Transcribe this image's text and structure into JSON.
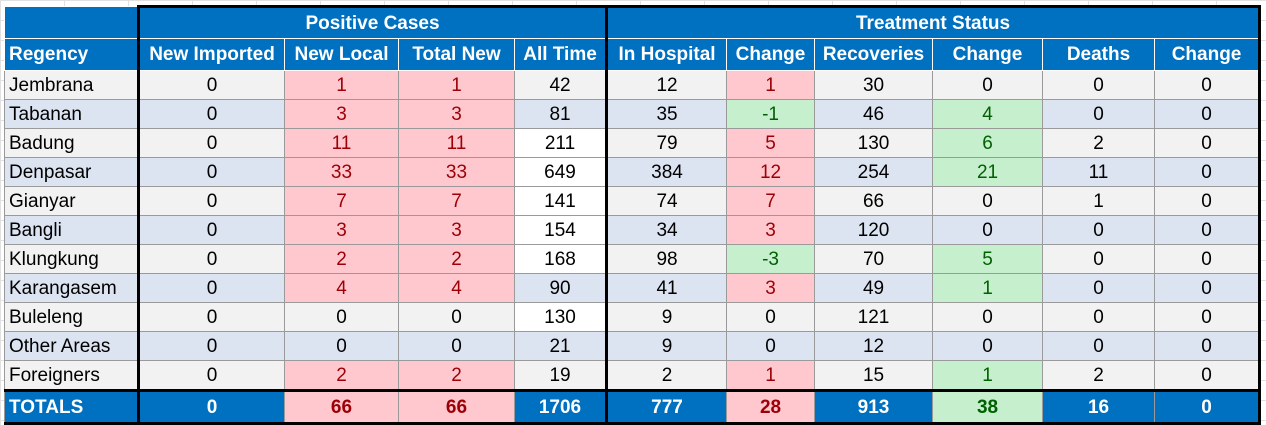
{
  "groups": {
    "positive": "Positive Cases",
    "treatment": "Treatment Status"
  },
  "columns": [
    "Regency",
    "New Imported",
    "New Local",
    "Total New",
    "All Time",
    "In Hospital",
    "Change",
    "Recoveries",
    "Change",
    "Deaths",
    "Change"
  ],
  "rows": [
    [
      "Jembrana",
      "0",
      "1",
      "1",
      "42",
      "12",
      "1",
      "30",
      "0",
      "0",
      "0"
    ],
    [
      "Tabanan",
      "0",
      "3",
      "3",
      "81",
      "35",
      "-1",
      "46",
      "4",
      "0",
      "0"
    ],
    [
      "Badung",
      "0",
      "11",
      "11",
      "211",
      "79",
      "5",
      "130",
      "6",
      "2",
      "0"
    ],
    [
      "Denpasar",
      "0",
      "33",
      "33",
      "649",
      "384",
      "12",
      "254",
      "21",
      "11",
      "0"
    ],
    [
      "Gianyar",
      "0",
      "7",
      "7",
      "141",
      "74",
      "7",
      "66",
      "0",
      "1",
      "0"
    ],
    [
      "Bangli",
      "0",
      "3",
      "3",
      "154",
      "34",
      "3",
      "120",
      "0",
      "0",
      "0"
    ],
    [
      "Klungkung",
      "0",
      "2",
      "2",
      "168",
      "98",
      "-3",
      "70",
      "5",
      "0",
      "0"
    ],
    [
      "Karangasem",
      "0",
      "4",
      "4",
      "90",
      "41",
      "3",
      "49",
      "1",
      "0",
      "0"
    ],
    [
      "Buleleng",
      "0",
      "0",
      "0",
      "130",
      "9",
      "0",
      "121",
      "0",
      "0",
      "0"
    ],
    [
      "Other Areas",
      "0",
      "0",
      "0",
      "21",
      "9",
      "0",
      "12",
      "0",
      "0",
      "0"
    ],
    [
      "Foreigners",
      "0",
      "2",
      "2",
      "19",
      "2",
      "1",
      "15",
      "1",
      "2",
      "0"
    ]
  ],
  "totals": [
    "TOTALS",
    "0",
    "66",
    "66",
    "1706",
    "777",
    "28",
    "913",
    "38",
    "16",
    "0"
  ],
  "colors": {
    "header_blue": "#0070c0",
    "highlight_red_bg": "#ffc7ce",
    "highlight_red_text": "#9c0006",
    "highlight_green_bg": "#c6efce",
    "highlight_green_text": "#006100",
    "band_gray": "#f2f2f2",
    "band_blue": "#dce4f2"
  }
}
